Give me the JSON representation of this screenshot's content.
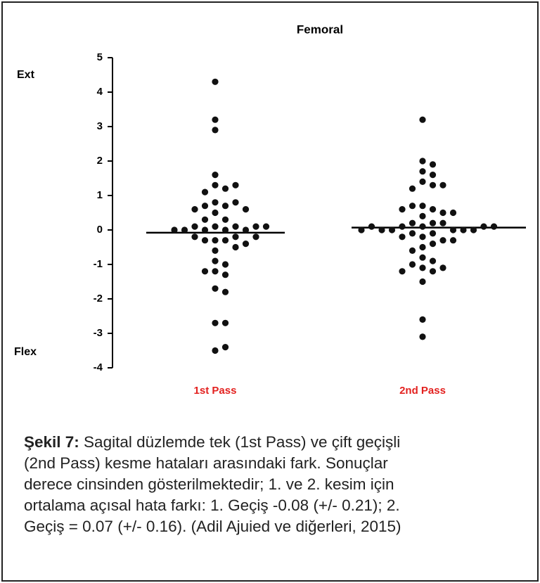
{
  "chart_data": {
    "type": "scatter",
    "title": "Femoral",
    "annotations": [
      "Ext",
      "Flex"
    ],
    "categories": [
      "1st Pass",
      "2nd Pass"
    ],
    "category_color": "#e3211f",
    "color": "#111111",
    "ylim": [
      -4,
      5
    ],
    "yticks": [
      -4,
      -3,
      -2,
      -1,
      0,
      1,
      2,
      3,
      4,
      5
    ],
    "means": [
      -0.08,
      0.07
    ],
    "values": [
      [
        4.3,
        3.2,
        2.9,
        1.6,
        1.3,
        1.2,
        1.1,
        1.3,
        0.8,
        0.7,
        0.7,
        0.8,
        0.6,
        0.6,
        0.5,
        0.3,
        0.3,
        0.1,
        0.1,
        0.1,
        0,
        0,
        0,
        0,
        0.1,
        0,
        0.1,
        -0.3,
        -0.3,
        -0.2,
        -0.2,
        -0.3,
        -0.2,
        -0.5,
        -0.4,
        -0.6,
        -0.9,
        -1.0,
        -1.2,
        -1.3,
        -1.2,
        -1.7,
        -1.8,
        -2.7,
        -2.7,
        -3.5,
        -3.4
      ],
      [
        3.2,
        2.0,
        1.9,
        1.7,
        1.6,
        1.4,
        1.3,
        1.2,
        1.3,
        0.7,
        0.6,
        0.7,
        0.5,
        0.6,
        0.5,
        0.4,
        0.2,
        0.2,
        0.1,
        0.2,
        0.1,
        0,
        0,
        0,
        -0.1,
        0,
        0,
        0.1,
        0.1,
        0,
        0.1,
        -0.1,
        -0.2,
        -0.3,
        -0.2,
        -0.3,
        -0.4,
        -0.5,
        -0.6,
        -0.8,
        -0.9,
        -1.0,
        -1.1,
        -1.2,
        -1.1,
        -1.2,
        -1.5,
        -2.6,
        -3.1
      ]
    ]
  },
  "caption": {
    "label": "Şekil 7:",
    "lines": [
      " Sagital düzlemde tek (1st Pass) ve çift geçişli",
      "(2nd Pass) kesme hataları arasındaki fark. Sonuçlar",
      "derece cinsinden gösterilmektedir; 1. ve 2. kesim için",
      "ortalama açısal hata farkı: 1. Geçiş -0.08 (+/- 0.21); 2.",
      "Geçiş = 0.07 (+/- 0.16). (Adil Ajuied ve diğerleri, 2015)"
    ]
  }
}
